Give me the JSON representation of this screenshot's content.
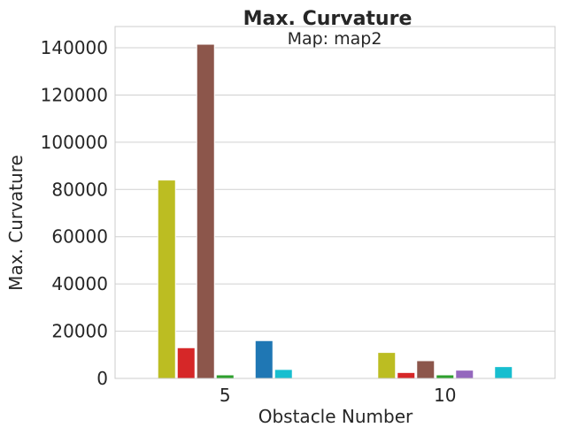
{
  "chart_data": {
    "type": "bar",
    "title": "Max. Curvature",
    "subtitle": "Map: map2",
    "xlabel": "Obstacle Number",
    "ylabel": "Max. Curvature",
    "categories": [
      "5",
      "10"
    ],
    "ylim": [
      0,
      149000
    ],
    "yticks": [
      0,
      20000,
      40000,
      60000,
      80000,
      100000,
      120000,
      140000
    ],
    "ytick_labels": [
      "0",
      "20000",
      "40000",
      "60000",
      "80000",
      "100000",
      "120000",
      "140000"
    ],
    "grid": true,
    "legend": "none",
    "series": [
      {
        "color": "#bcbd22",
        "values": [
          84000,
          11000
        ]
      },
      {
        "color": "#d62728",
        "values": [
          13000,
          2500
        ]
      },
      {
        "color": "#8c564b",
        "values": [
          141500,
          7500
        ]
      },
      {
        "color": "#2ca02c",
        "values": [
          1500,
          1500
        ]
      },
      {
        "color": "#9467bd",
        "values": [
          0,
          3500
        ]
      },
      {
        "color": "#1f77b4",
        "values": [
          16000,
          0
        ]
      },
      {
        "color": "#17becf",
        "values": [
          3800,
          5000
        ]
      }
    ]
  }
}
